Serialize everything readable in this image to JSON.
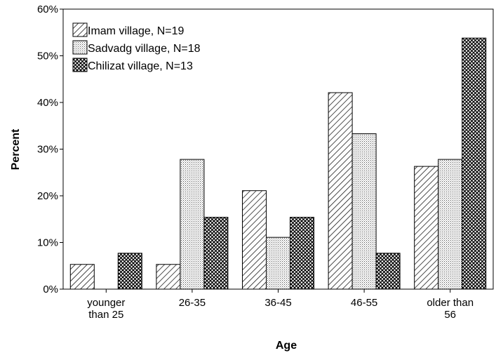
{
  "chart_data": {
    "type": "bar",
    "title": "",
    "xlabel": "Age",
    "ylabel": "Percent",
    "ylim": [
      0,
      60
    ],
    "yticks": [
      "0%",
      "10%",
      "20%",
      "30%",
      "40%",
      "50%",
      "60%"
    ],
    "grid": false,
    "legend_position": "top-left",
    "categories": [
      [
        "younger",
        "than 25"
      ],
      [
        "26-35"
      ],
      [
        "36-45"
      ],
      [
        "46-55"
      ],
      [
        "older than",
        "56"
      ]
    ],
    "series": [
      {
        "name": "Imam village, N=19",
        "pattern": "diagonal-hatch",
        "values": [
          5.3,
          5.3,
          21.1,
          42.1,
          26.3
        ]
      },
      {
        "name": "Sadvadg village, N=18",
        "pattern": "dots",
        "values": [
          0,
          27.8,
          11.1,
          33.3,
          27.8
        ]
      },
      {
        "name": "Chilizat village, N=13",
        "pattern": "crosshatch",
        "values": [
          7.7,
          15.4,
          15.4,
          7.7,
          53.8
        ]
      }
    ]
  }
}
